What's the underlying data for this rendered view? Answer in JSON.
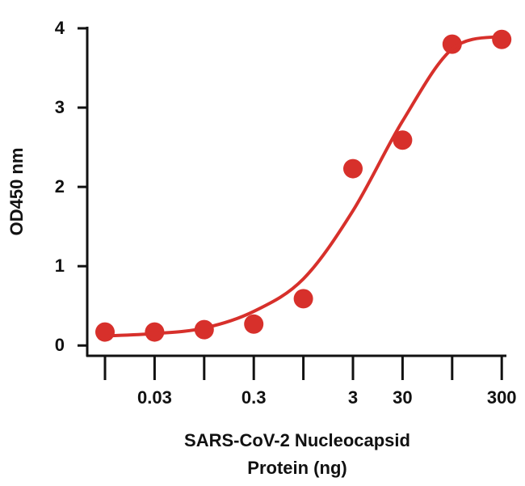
{
  "chart_data": {
    "type": "scatter",
    "ylabel": "OD450 nm",
    "xlabel": [
      "SARS-CoV-2 Nucleocapsid",
      "Protein (ng)"
    ],
    "categories": [
      null,
      "0.03",
      null,
      "0.3",
      null,
      "3",
      "30",
      null,
      "300"
    ],
    "series": [
      {
        "color": "#d7302b",
        "values": [
          0.17,
          0.17,
          0.2,
          0.27,
          0.59,
          2.23,
          2.59,
          3.8,
          3.86
        ],
        "style": "points"
      },
      {
        "color": "#d7302b",
        "values": [
          0.12,
          0.15,
          0.22,
          0.43,
          0.84,
          1.7,
          2.83,
          3.74,
          3.9
        ],
        "style": "curve"
      }
    ],
    "ylim": [
      -0.13,
      4
    ],
    "yticks": [
      0,
      1,
      2,
      3,
      4
    ]
  }
}
